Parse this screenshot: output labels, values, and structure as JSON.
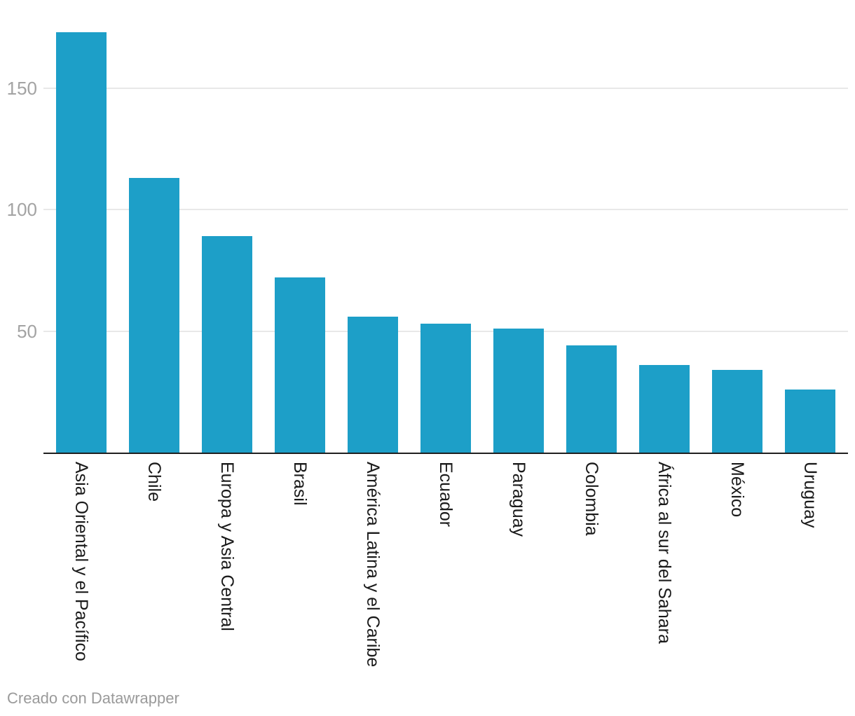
{
  "chart_data": {
    "type": "bar",
    "categories": [
      "Asia Oriental y el Pacífico",
      "Chile",
      "Europa y Asia Central",
      "Brasil",
      "América Latina y el Caribe",
      "Ecuador",
      "Paraguay",
      "Colombia",
      "África al sur del Sahara",
      "México",
      "Uruguay"
    ],
    "values": [
      173,
      113,
      89,
      72,
      56,
      53,
      51,
      44,
      36,
      34,
      26
    ],
    "yticks": [
      50,
      100,
      150
    ],
    "ylim": [
      0,
      186
    ],
    "grid": true,
    "legend_position": "none",
    "xlabel": "",
    "ylabel": "",
    "bar_color": "#1d9fc8"
  },
  "colors": {
    "bar": "#1d9fc8",
    "gridline": "#e8e8e8",
    "axis_line": "#1f1f1f",
    "tick_text": "#a3a3a3",
    "label_text": "#1a1a1a",
    "footer_text": "#9a9a9a",
    "background": "#ffffff"
  },
  "footer": {
    "credit": "Creado con Datawrapper"
  }
}
